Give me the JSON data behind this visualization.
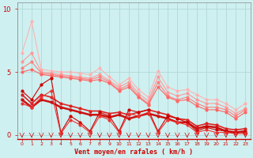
{
  "background_color": "#cff0f0",
  "grid_color": "#b0d8d8",
  "xlabel": "Vent moyen/en rafales ( km/h )",
  "xlabel_color": "#cc0000",
  "tick_color": "#cc0000",
  "ylabel_color": "#cc0000",
  "x_ticks": [
    0,
    1,
    2,
    3,
    4,
    5,
    6,
    7,
    8,
    9,
    10,
    11,
    12,
    13,
    14,
    15,
    16,
    17,
    18,
    19,
    20,
    21,
    22,
    23
  ],
  "ylim": [
    -0.3,
    10.5
  ],
  "xlim": [
    -0.5,
    23.5
  ],
  "yticks": [
    0,
    5,
    10
  ],
  "lines": [
    {
      "x": [
        0,
        1,
        2,
        3,
        4,
        5,
        6,
        7,
        8,
        9,
        10,
        11,
        12,
        13,
        14,
        15,
        16,
        17,
        18,
        19,
        20,
        21,
        22,
        23
      ],
      "y": [
        6.5,
        9.0,
        5.2,
        5.1,
        5.0,
        5.0,
        4.9,
        4.8,
        5.3,
        4.6,
        4.0,
        4.5,
        3.6,
        3.0,
        5.1,
        3.8,
        3.5,
        3.6,
        3.2,
        2.8,
        2.8,
        2.5,
        2.0,
        2.5
      ],
      "color": "#ffb3b3",
      "linewidth": 0.8,
      "markersize": 2.0
    },
    {
      "x": [
        0,
        1,
        2,
        3,
        4,
        5,
        6,
        7,
        8,
        9,
        10,
        11,
        12,
        13,
        14,
        15,
        16,
        17,
        18,
        19,
        20,
        21,
        22,
        23
      ],
      "y": [
        5.8,
        6.5,
        5.0,
        4.9,
        4.8,
        4.7,
        4.6,
        4.5,
        4.8,
        4.3,
        3.8,
        4.2,
        3.3,
        2.7,
        4.6,
        3.4,
        3.1,
        3.3,
        2.8,
        2.5,
        2.5,
        2.2,
        1.7,
        2.1
      ],
      "color": "#ff9999",
      "linewidth": 0.8,
      "markersize": 2.0
    },
    {
      "x": [
        0,
        1,
        2,
        3,
        4,
        5,
        6,
        7,
        8,
        9,
        10,
        11,
        12,
        13,
        14,
        15,
        16,
        17,
        18,
        19,
        20,
        21,
        22,
        23
      ],
      "y": [
        5.3,
        5.8,
        4.9,
        4.8,
        4.7,
        4.6,
        4.5,
        4.4,
        4.6,
        4.2,
        3.6,
        4.0,
        3.1,
        2.5,
        4.2,
        3.1,
        2.8,
        3.0,
        2.5,
        2.2,
        2.2,
        2.0,
        1.5,
        2.0
      ],
      "color": "#ff8080",
      "linewidth": 0.8,
      "markersize": 2.0
    },
    {
      "x": [
        0,
        1,
        2,
        3,
        4,
        5,
        6,
        7,
        8,
        9,
        10,
        11,
        12,
        13,
        14,
        15,
        16,
        17,
        18,
        19,
        20,
        21,
        22,
        23
      ],
      "y": [
        5.0,
        5.2,
        4.8,
        4.7,
        4.6,
        4.5,
        4.4,
        4.3,
        4.4,
        4.1,
        3.5,
        3.8,
        3.0,
        2.4,
        3.8,
        3.0,
        2.7,
        2.8,
        2.3,
        2.0,
        2.0,
        1.8,
        1.3,
        1.8
      ],
      "color": "#ff6666",
      "linewidth": 0.8,
      "markersize": 2.0
    },
    {
      "x": [
        0,
        1,
        2,
        3,
        4,
        5,
        6,
        7,
        8,
        9,
        10,
        11,
        12,
        13,
        14,
        15,
        16,
        17,
        18,
        19,
        20,
        21,
        22,
        23
      ],
      "y": [
        3.2,
        2.5,
        3.2,
        3.0,
        2.5,
        2.3,
        2.1,
        1.9,
        1.9,
        1.7,
        1.8,
        1.6,
        1.8,
        2.0,
        1.8,
        1.6,
        1.3,
        1.2,
        0.7,
        0.9,
        0.8,
        0.5,
        0.4,
        0.5
      ],
      "color": "#dd2222",
      "linewidth": 1.2,
      "markersize": 2.0
    },
    {
      "x": [
        0,
        1,
        2,
        3,
        4,
        5,
        6,
        7,
        8,
        9,
        10,
        11,
        12,
        13,
        14,
        15,
        16,
        17,
        18,
        19,
        20,
        21,
        22,
        23
      ],
      "y": [
        2.8,
        2.2,
        2.8,
        2.6,
        2.2,
        2.0,
        1.8,
        1.6,
        1.6,
        1.4,
        1.6,
        1.3,
        1.5,
        1.7,
        1.5,
        1.3,
        1.0,
        1.0,
        0.5,
        0.7,
        0.6,
        0.3,
        0.2,
        0.3
      ],
      "color": "#cc1111",
      "linewidth": 1.8,
      "markersize": 2.0
    },
    {
      "x": [
        0,
        1,
        2,
        3,
        4,
        5,
        6,
        7,
        8,
        9,
        10,
        11,
        12,
        13,
        14,
        15,
        16,
        17,
        18,
        19,
        20,
        21,
        22,
        23
      ],
      "y": [
        3.5,
        2.8,
        4.0,
        4.5,
        0.2,
        1.5,
        1.0,
        0.3,
        1.8,
        1.5,
        0.3,
        2.0,
        1.8,
        2.0,
        0.3,
        1.5,
        1.3,
        1.0,
        0.3,
        0.6,
        0.4,
        0.3,
        0.2,
        0.2
      ],
      "color": "#cc0000",
      "linewidth": 0.8,
      "markersize": 2.0
    },
    {
      "x": [
        0,
        1,
        2,
        3,
        4,
        5,
        6,
        7,
        8,
        9,
        10,
        11,
        12,
        13,
        14,
        15,
        16,
        17,
        18,
        19,
        20,
        21,
        22,
        23
      ],
      "y": [
        2.5,
        2.2,
        3.0,
        3.5,
        0.1,
        1.2,
        0.8,
        0.2,
        1.5,
        1.2,
        0.2,
        1.7,
        1.5,
        1.8,
        0.2,
        1.2,
        1.0,
        0.8,
        0.2,
        0.4,
        0.2,
        0.2,
        0.1,
        0.1
      ],
      "color": "#ee3333",
      "linewidth": 0.8,
      "markersize": 2.0
    }
  ]
}
